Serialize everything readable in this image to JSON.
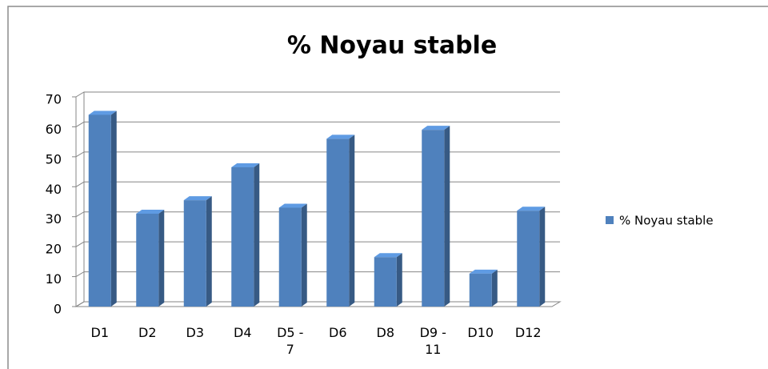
{
  "chart_data": {
    "type": "bar3d",
    "title": "% Noyau stable",
    "categories": [
      "D1",
      "D2",
      "D3",
      "D4",
      "D5 - 7",
      "D6",
      "D8",
      "D9 - 11",
      "D10",
      "D12"
    ],
    "series": [
      {
        "name": "% Noyau stable",
        "color": "#4f81bd",
        "values": [
          64,
          31,
          35.5,
          46.5,
          33,
          56,
          16.5,
          59,
          11,
          32
        ]
      }
    ],
    "ylim": [
      0,
      70
    ],
    "yticks": [
      0,
      10,
      20,
      30,
      40,
      50,
      60,
      70
    ],
    "grid": true,
    "legend": "right"
  }
}
